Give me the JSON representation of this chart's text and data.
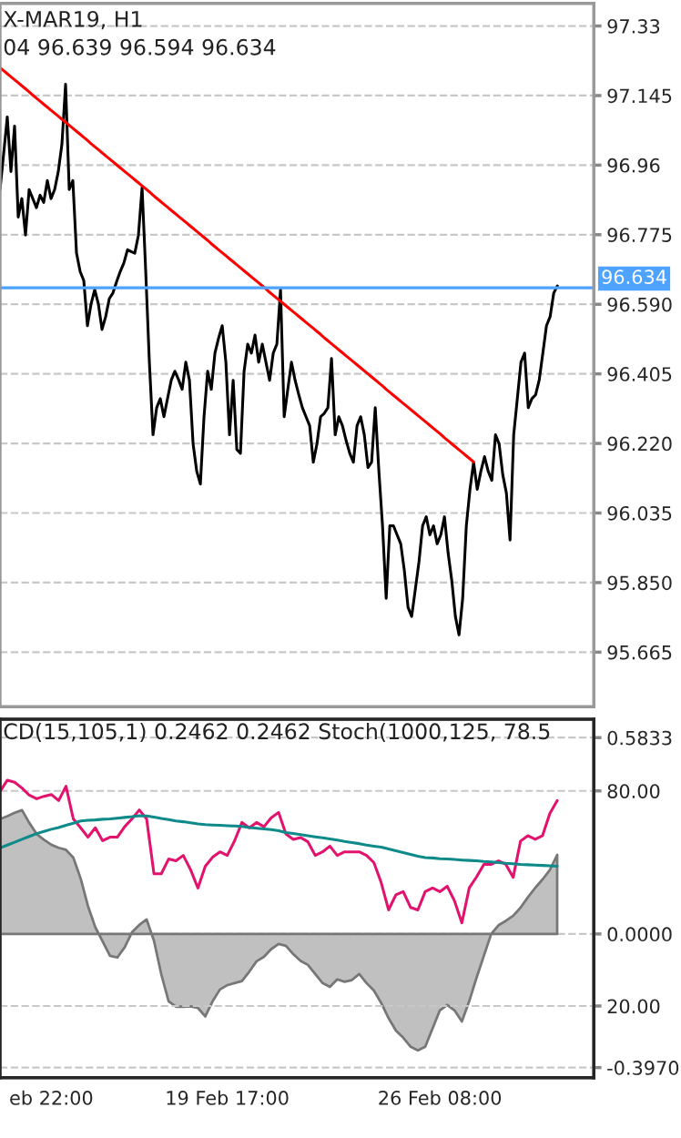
{
  "chart_data": [
    {
      "type": "line",
      "title": "X-MAR19, H1",
      "subtitle": "04 96.639 96.594 96.634",
      "categories": [
        null,
        null,
        null,
        null,
        null,
        null,
        null,
        null,
        null,
        null,
        null,
        null,
        null,
        null,
        null,
        null,
        null,
        null,
        null,
        null,
        null,
        null,
        null,
        null,
        null,
        null,
        null,
        null,
        null,
        null,
        null,
        null,
        null,
        null,
        null,
        null,
        null,
        null,
        null,
        null,
        null,
        null,
        null,
        null,
        null,
        null,
        null,
        null,
        null,
        null,
        null,
        null,
        null,
        null,
        null,
        null,
        null,
        null,
        null,
        null,
        null,
        null,
        null,
        null,
        null,
        null,
        null,
        null,
        null,
        null,
        null,
        null,
        null,
        null,
        null,
        null,
        null,
        null,
        null,
        null,
        null,
        null,
        null,
        null,
        null,
        null,
        null,
        null,
        null,
        null,
        null,
        null,
        null,
        null,
        null,
        null,
        null,
        null,
        null,
        null,
        null,
        null,
        null,
        null,
        null,
        null,
        null,
        null,
        null,
        null,
        null,
        null,
        null,
        null,
        null,
        null,
        null,
        null,
        null,
        null,
        null,
        null,
        null,
        null,
        null,
        null,
        null,
        null,
        null,
        null,
        null,
        null,
        null,
        null,
        null,
        null,
        null,
        null,
        null,
        null,
        null,
        null,
        null,
        null,
        null,
        null,
        null,
        null,
        null,
        null,
        null,
        null,
        null,
        null,
        null,
        null,
        null,
        null,
        null,
        null,
        null,
        null,
        null,
        null
      ],
      "ylim": [
        95.52,
        97.39
      ],
      "yticks": [
        97.33,
        97.145,
        96.96,
        96.775,
        {
          "value": 96.59,
          "label": "96.590"
        },
        96.405,
        {
          "value": 96.22,
          "label": "96.220"
        },
        96.035,
        {
          "value": 95.85,
          "label": "95.850"
        },
        95.665
      ],
      "tick_labels": "y",
      "grid": "y",
      "ref_lines": [
        {
          "axis": "y",
          "value": 96.634,
          "label": "96.634",
          "color": "#4da3ff"
        }
      ],
      "series": [
        {
          "color": "#000000",
          "values": [
            96.895,
            96.99,
            97.088,
            96.943,
            97.064,
            96.822,
            96.871,
            96.774,
            96.895,
            96.871,
            96.847,
            96.88,
            96.861,
            96.919,
            96.871,
            96.895,
            96.943,
            97.016,
            97.175,
            96.895,
            96.919,
            96.726,
            96.677,
            96.653,
            96.533,
            96.591,
            96.629,
            96.591,
            96.523,
            96.557,
            96.605,
            96.62,
            96.65,
            96.677,
            96.7,
            96.735,
            96.73,
            96.726,
            96.774,
            96.9,
            96.677,
            96.436,
            96.243,
            96.315,
            96.339,
            96.291,
            96.34,
            96.388,
            96.412,
            96.39,
            96.364,
            96.436,
            96.388,
            96.219,
            96.146,
            96.112,
            96.291,
            96.412,
            96.364,
            96.46,
            96.5,
            96.533,
            96.436,
            96.243,
            96.388,
            96.204,
            96.194,
            96.412,
            96.484,
            96.46,
            96.508,
            96.436,
            96.484,
            96.436,
            96.388,
            96.46,
            96.484,
            96.629,
            96.291,
            96.364,
            96.436,
            96.388,
            96.35,
            96.315,
            96.291,
            96.267,
            96.17,
            96.219,
            96.291,
            96.3,
            96.315,
            96.446,
            96.243,
            96.291,
            96.267,
            96.228,
            96.194,
            96.17,
            96.267,
            96.291,
            96.243,
            96.156,
            96.17,
            96.315,
            96.146,
            96.001,
            95.808,
            96.001,
            96.001,
            95.977,
            95.953,
            95.881,
            95.784,
            95.76,
            95.832,
            95.905,
            96.001,
            96.025,
            95.977,
            96.001,
            95.953,
            95.977,
            96.025,
            95.929,
            95.856,
            95.76,
            95.711,
            95.808,
            96.001,
            96.098,
            96.17,
            96.098,
            96.146,
            96.185,
            96.146,
            96.122,
            96.243,
            96.219,
            96.137,
            96.088,
            95.963,
            96.243,
            96.339,
            96.436,
            96.46,
            96.315,
            96.339,
            96.349,
            96.388,
            96.46,
            96.533,
            96.557,
            96.62,
            96.639,
            null,
            null,
            null,
            null,
            null,
            null,
            null,
            null,
            null,
            null
          ]
        },
        {
          "color": "#ff0000",
          "values": [
            97.219,
            97.211,
            97.203,
            97.195,
            97.187,
            97.179,
            97.171,
            97.163,
            97.155,
            97.146,
            97.138,
            97.13,
            97.122,
            97.114,
            97.106,
            97.098,
            97.09,
            97.082,
            97.074,
            97.066,
            97.058,
            97.05,
            97.042,
            97.034,
            97.026,
            97.017,
            97.009,
            97.001,
            96.993,
            96.985,
            96.977,
            96.969,
            96.961,
            96.953,
            96.945,
            96.937,
            96.929,
            96.921,
            96.913,
            96.905,
            96.897,
            96.889,
            96.88,
            96.872,
            96.864,
            96.856,
            96.848,
            96.84,
            96.832,
            96.824,
            96.816,
            96.808,
            96.8,
            96.792,
            96.784,
            96.776,
            96.768,
            96.76,
            96.751,
            96.743,
            96.735,
            96.727,
            96.719,
            96.711,
            96.703,
            96.695,
            96.687,
            96.679,
            96.671,
            96.663,
            96.655,
            96.647,
            96.639,
            96.631,
            96.622,
            96.614,
            96.606,
            96.598,
            96.59,
            96.582,
            96.574,
            96.566,
            96.558,
            96.55,
            96.542,
            96.534,
            96.526,
            96.518,
            96.51,
            96.501,
            96.493,
            96.485,
            96.477,
            96.469,
            96.461,
            96.453,
            96.445,
            96.437,
            96.429,
            96.421,
            96.413,
            96.405,
            96.397,
            96.389,
            96.381,
            96.373,
            96.364,
            96.356,
            96.348,
            96.34,
            96.332,
            96.324,
            96.316,
            96.308,
            96.3,
            96.292,
            96.284,
            96.276,
            96.268,
            96.26,
            96.252,
            96.244,
            96.235,
            96.227,
            96.219,
            96.211,
            96.203,
            96.195,
            96.187,
            96.179,
            96.171,
            null,
            null,
            null,
            null,
            null,
            null,
            null,
            null,
            null,
            null,
            null,
            null,
            null,
            null,
            null,
            null,
            null,
            null,
            null,
            null,
            null,
            null,
            null,
            null,
            null,
            null,
            null,
            null,
            null,
            null,
            null,
            null,
            null
          ]
        }
      ]
    },
    {
      "type": "line",
      "title": "CD(15,105,1) 0.2462 0.2462 Stoch(1000,125, 78.5",
      "categories": [
        null,
        null,
        null,
        null,
        null,
        null,
        null,
        "eb 22:00",
        null,
        null,
        null,
        null,
        null,
        null,
        null,
        null,
        null,
        null,
        null,
        null,
        null,
        null,
        null,
        null,
        null,
        null,
        null,
        null,
        null,
        null,
        null,
        "19 Feb 17:00",
        null,
        null,
        null,
        null,
        null,
        null,
        null,
        null,
        null,
        null,
        null,
        null,
        null,
        null,
        null,
        null,
        null,
        null,
        null,
        null,
        null,
        null,
        null,
        null,
        null,
        null,
        null,
        null,
        "26 Feb 08:00",
        null,
        null,
        null,
        null,
        null,
        null,
        null,
        null,
        null,
        null,
        null,
        null,
        null,
        null,
        null,
        null,
        null,
        null,
        null,
        null,
        null
      ],
      "ylim": [
        -0.427,
        0.638
      ],
      "yticks": [
        0.5833,
        {
          "value": 0,
          "label": "0.0000"
        },
        {
          "value": -0.397,
          "label": "-0.3970"
        }
      ],
      "y2lim": [
        0,
        100
      ],
      "y2ticks": [
        {
          "value": 80,
          "label": "80.00"
        },
        {
          "value": 20,
          "label": "20.00"
        }
      ],
      "grid": "y",
      "series": [
        {
          "type": "area",
          "color": "#c0c0c0",
          "values": [
            0.341,
            0.35,
            0.36,
            0.368,
            0.33,
            0.297,
            0.28,
            0.265,
            0.256,
            0.25,
            0.227,
            0.165,
            0.083,
            0.02,
            -0.022,
            -0.065,
            -0.07,
            -0.04,
            0.005,
            0.027,
            0.043,
            -0.02,
            -0.12,
            -0.2,
            -0.216,
            -0.216,
            -0.215,
            -0.22,
            -0.245,
            -0.2,
            -0.165,
            -0.152,
            -0.146,
            -0.14,
            -0.112,
            -0.081,
            -0.068,
            -0.045,
            -0.03,
            -0.035,
            -0.06,
            -0.08,
            -0.092,
            -0.119,
            -0.146,
            -0.157,
            -0.135,
            -0.142,
            -0.137,
            -0.119,
            -0.146,
            -0.168,
            -0.205,
            -0.25,
            -0.287,
            -0.308,
            -0.335,
            -0.346,
            -0.335,
            -0.281,
            -0.227,
            -0.211,
            -0.227,
            -0.26,
            -0.2,
            -0.13,
            -0.065,
            0,
            0.026,
            0.039,
            0.054,
            0.078,
            0.109,
            0.137,
            0.162,
            0.19,
            0.235,
            null,
            null,
            null,
            null,
            null
          ]
        },
        {
          "axis": "y2",
          "color": "#e2136e",
          "values": [
            79.8,
            83.0,
            82.4,
            80.8,
            78.8,
            77.8,
            78.5,
            79.0,
            77.3,
            81.3,
            72.2,
            69.7,
            67.1,
            69.7,
            66.1,
            67.1,
            67.1,
            70.0,
            72.2,
            74.7,
            72.2,
            56.9,
            56.9,
            61.0,
            60.5,
            62.0,
            58.0,
            52.9,
            59.0,
            61.5,
            63.0,
            62.0,
            66.1,
            71.2,
            69.7,
            71.2,
            70.0,
            72.5,
            74.0,
            68.0,
            66.5,
            67.0,
            65.8,
            62.0,
            63.0,
            64.6,
            62.0,
            63.0,
            63.0,
            63.0,
            62.0,
            60.0,
            54.4,
            46.8,
            51.0,
            51.9,
            47.5,
            46.8,
            51.9,
            52.9,
            51.9,
            53.4,
            49.3,
            43.2,
            52.9,
            56.0,
            59.5,
            59.5,
            60.5,
            59.5,
            55.9,
            66.0,
            67.5,
            66.5,
            67.5,
            73.7,
            77.3,
            null,
            null,
            null,
            null,
            null
          ]
        },
        {
          "axis": "y2",
          "color": "#0f8a8a",
          "values": [
            64.1,
            64.9,
            65.7,
            66.5,
            67.3,
            68.1,
            68.7,
            69.3,
            69.8,
            70.4,
            71.0,
            71.6,
            71.8,
            71.9,
            72.1,
            72.2,
            72.4,
            72.6,
            72.8,
            73.1,
            73.0,
            72.7,
            72.3,
            72.0,
            71.6,
            71.4,
            71.1,
            70.8,
            70.6,
            70.5,
            70.4,
            70.3,
            70.2,
            70.1,
            69.8,
            69.6,
            69.4,
            69.2,
            68.9,
            68.4,
            68.1,
            67.8,
            67.5,
            67.2,
            66.9,
            66.6,
            66.3,
            65.9,
            65.6,
            65.3,
            64.9,
            64.6,
            64.3,
            63.8,
            63.3,
            62.8,
            62.3,
            61.8,
            61.4,
            61.3,
            61.1,
            61.0,
            60.9,
            60.7,
            60.6,
            60.5,
            60.3,
            60.2,
            60.0,
            59.8,
            59.7,
            59.5,
            59.4,
            59.3,
            59.2,
            59.1,
            59.0,
            null,
            null,
            null,
            null,
            null
          ]
        }
      ]
    }
  ]
}
